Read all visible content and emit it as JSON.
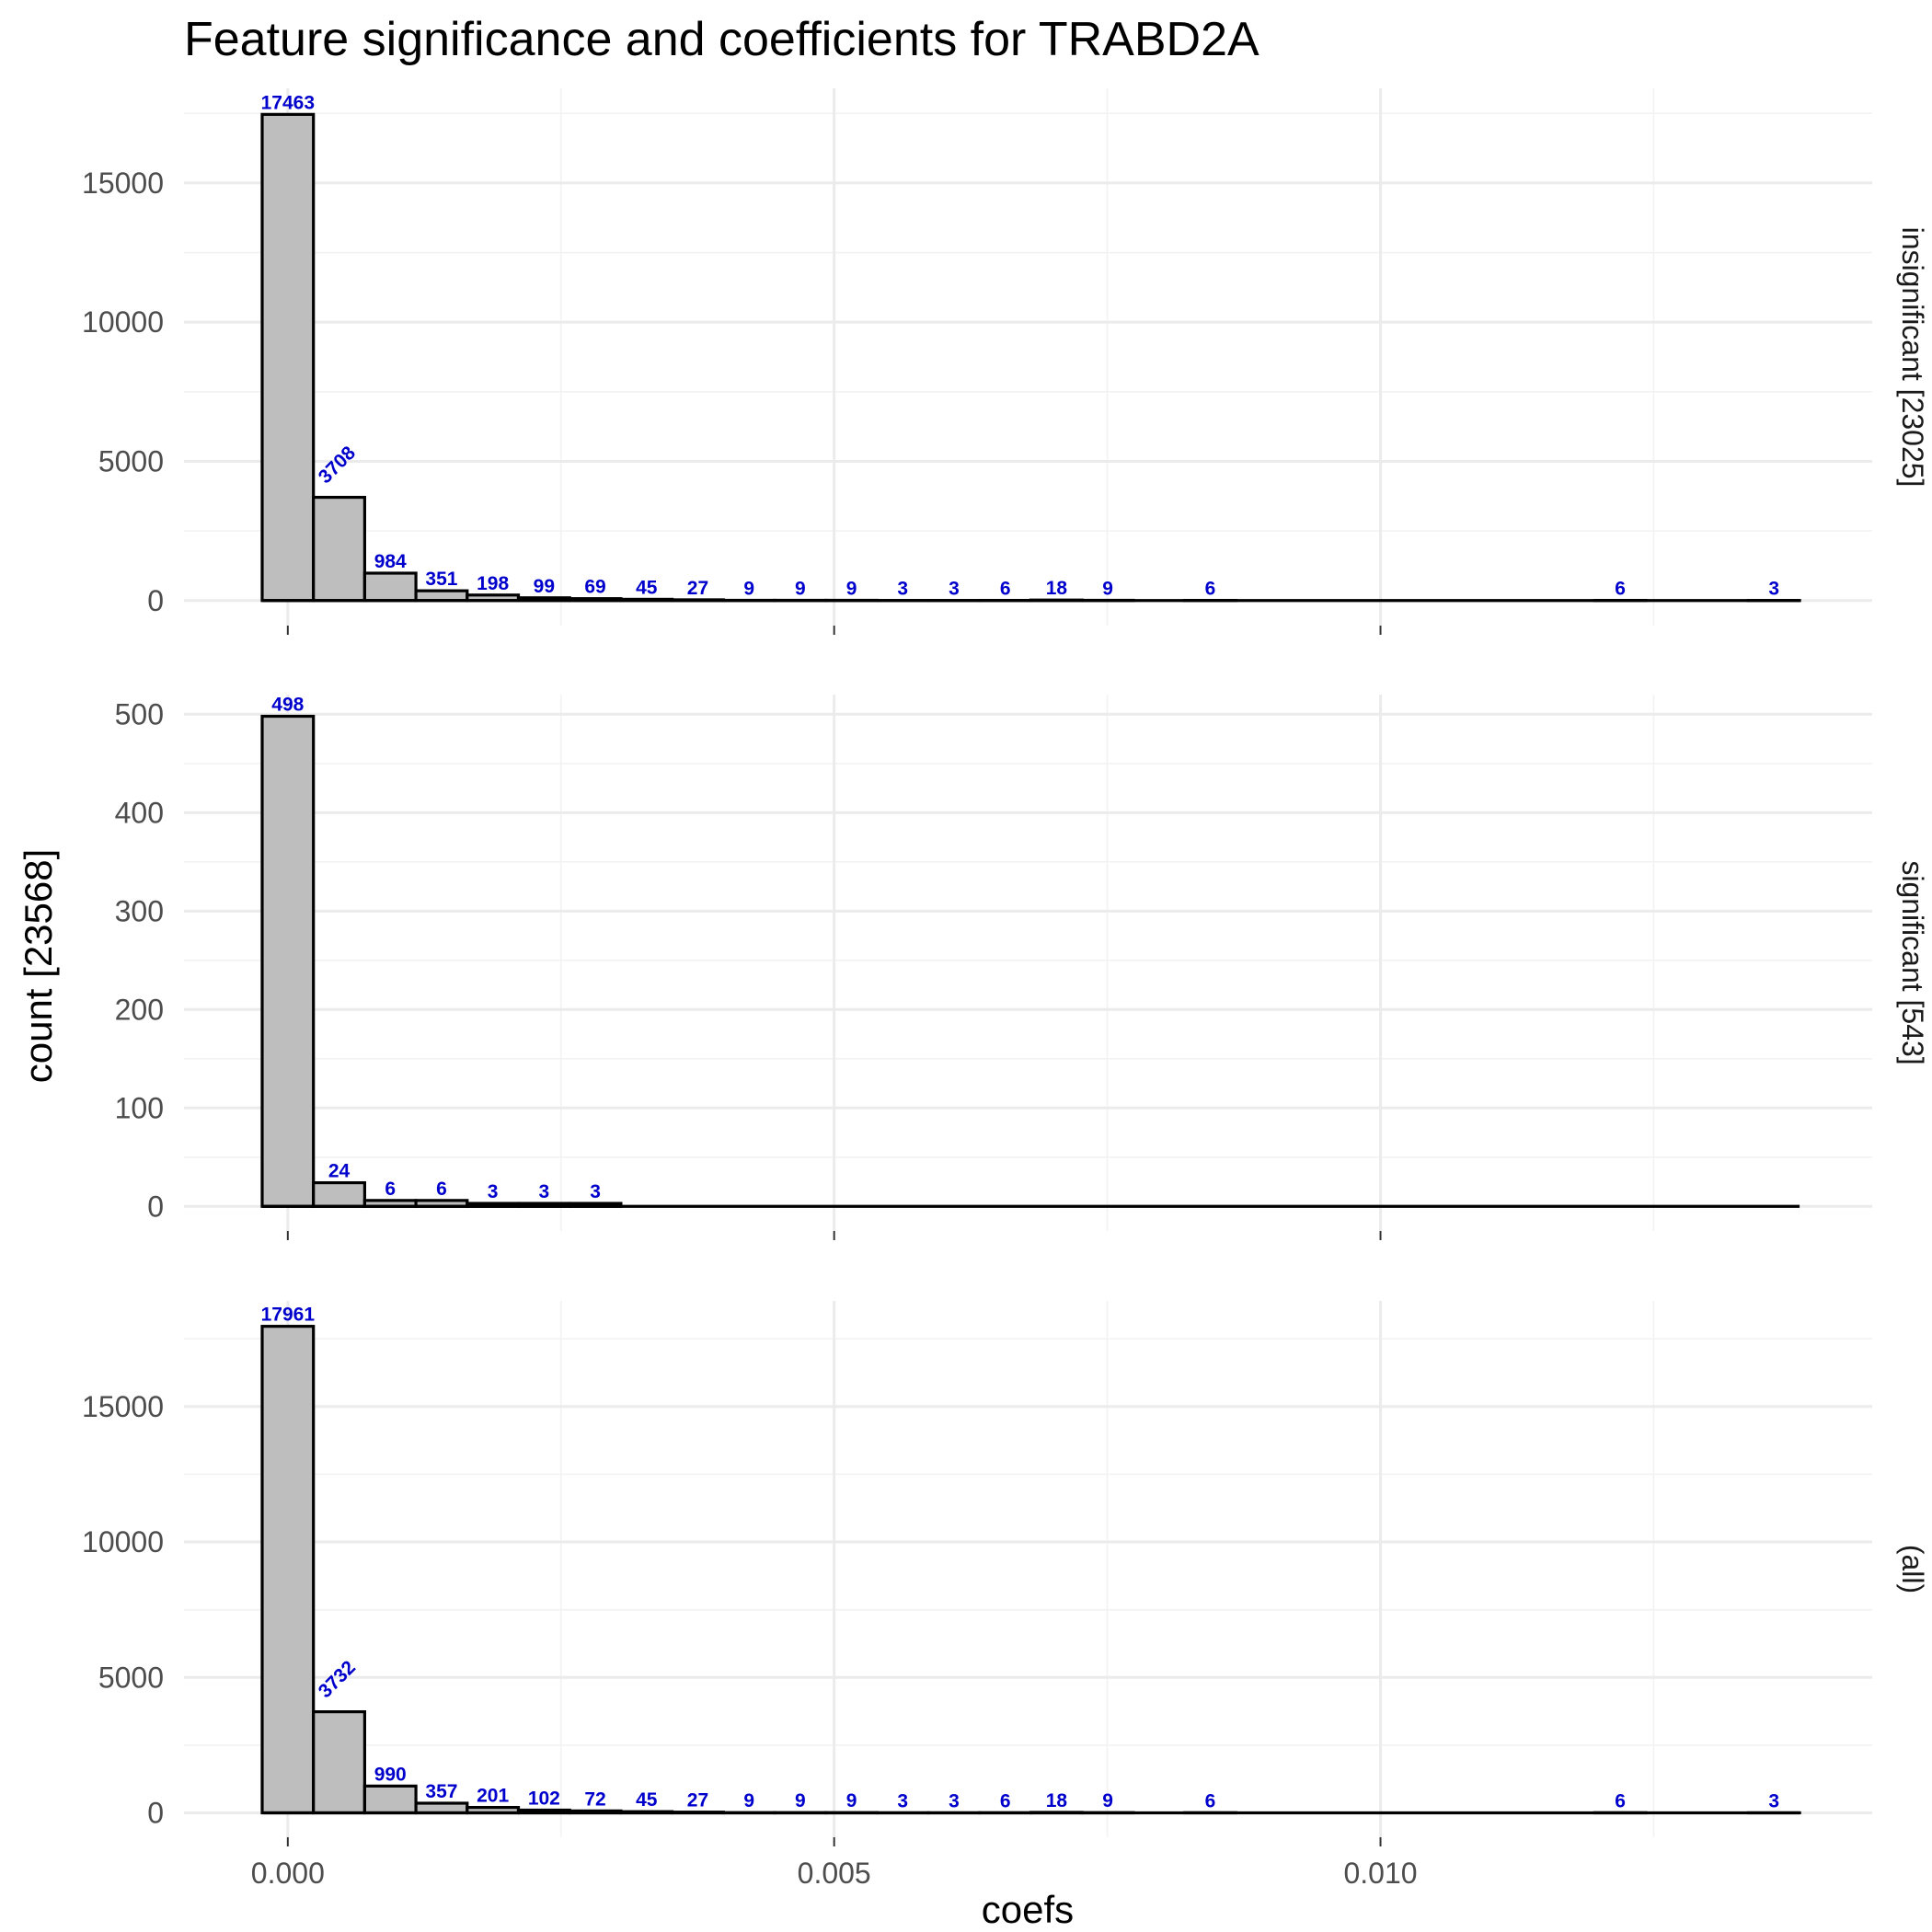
{
  "chart_data": {
    "type": "bar",
    "title": "Feature significance and coefficients for TRABD2A",
    "xlabel": "coefs",
    "ylabel": "count [23568]",
    "xlim": [
      -0.00095,
      0.0145
    ],
    "binwidth": 0.000469,
    "first_bin_center": 0.0,
    "x_ticks": [
      0.0,
      0.005,
      0.01
    ],
    "x_tick_labels": [
      "0.000",
      "0.005",
      "0.010"
    ],
    "grid": true,
    "panels": [
      {
        "strip": "insignificant [23025]",
        "ylim": [
          -900,
          18400
        ],
        "y_ticks": [
          0,
          5000,
          10000,
          15000
        ],
        "y_tick_labels": [
          "0",
          "5000",
          "10000",
          "15000"
        ],
        "bin_counts": [
          17463,
          3708,
          984,
          351,
          198,
          99,
          69,
          45,
          27,
          9,
          9,
          9,
          3,
          3,
          6,
          18,
          9,
          0,
          6,
          0,
          0,
          0,
          0,
          0,
          0,
          0,
          6,
          0,
          0,
          3
        ]
      },
      {
        "strip": "significant [543]",
        "ylim": [
          -25,
          520
        ],
        "y_ticks": [
          0,
          100,
          200,
          300,
          400,
          500
        ],
        "y_tick_labels": [
          "0",
          "100",
          "200",
          "300",
          "400",
          "500"
        ],
        "bin_counts": [
          498,
          24,
          6,
          6,
          3,
          3,
          3,
          0,
          0,
          0,
          0,
          0,
          0,
          0,
          0,
          0,
          0,
          0,
          0,
          0,
          0,
          0,
          0,
          0,
          0,
          0,
          0,
          0,
          0,
          0
        ]
      },
      {
        "strip": "(all)",
        "ylim": [
          -900,
          18900
        ],
        "y_ticks": [
          0,
          5000,
          10000,
          15000
        ],
        "y_tick_labels": [
          "0",
          "5000",
          "10000",
          "15000"
        ],
        "bin_counts": [
          17961,
          3732,
          990,
          357,
          201,
          102,
          72,
          45,
          27,
          9,
          9,
          9,
          3,
          3,
          6,
          18,
          9,
          0,
          6,
          0,
          0,
          0,
          0,
          0,
          0,
          0,
          6,
          0,
          0,
          3
        ]
      }
    ]
  }
}
